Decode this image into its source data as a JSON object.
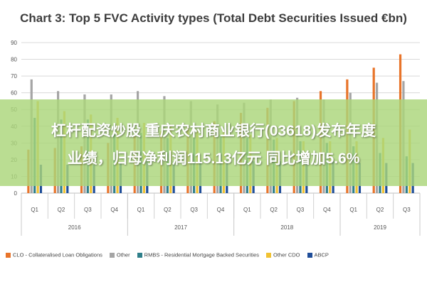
{
  "chart_data": {
    "type": "bar",
    "title": "Chart 3: Top 5 FVC Activity types (Total Debt Securities Issued €bn)",
    "xlabel": "",
    "ylabel": "",
    "ylim": [
      0,
      90
    ],
    "yticks": [
      "0",
      "10",
      "20",
      "30",
      "40",
      "50",
      "60",
      "70",
      "80",
      "90"
    ],
    "grid": true,
    "legend_position": "bottom",
    "categories": [
      "Q1",
      "Q2",
      "Q3",
      "Q4",
      "Q1",
      "Q2",
      "Q3",
      "Q4",
      "Q1",
      "Q2",
      "Q3",
      "Q4",
      "Q1",
      "Q2",
      "Q3"
    ],
    "groups": [
      {
        "label": "2016",
        "quarters": 4
      },
      {
        "label": "2017",
        "quarters": 4
      },
      {
        "label": "2018",
        "quarters": 4
      },
      {
        "label": "2019",
        "quarters": 3
      }
    ],
    "series": [
      {
        "name": "CLO - Collateralised Loan Obligations",
        "color": "#e8742a",
        "values": [
          26,
          27,
          28,
          30,
          34,
          37,
          40,
          43,
          48,
          51,
          55,
          61,
          68,
          75,
          83
        ]
      },
      {
        "name": "Other",
        "color": "#a5a5a5",
        "values": [
          68,
          61,
          59,
          59,
          61,
          58,
          55,
          53,
          54,
          56,
          57,
          56,
          60,
          66,
          67
        ]
      },
      {
        "name": "RMBS - Residential Mortgage Backed Securities",
        "color": "#2f7f8a",
        "values": [
          45,
          44,
          44,
          41,
          36,
          33,
          33,
          35,
          33,
          32,
          31,
          30,
          28,
          24,
          22
        ]
      },
      {
        "name": "Other CDO",
        "color": "#f1c232",
        "values": [
          55,
          49,
          47,
          45,
          42,
          40,
          37,
          37,
          35,
          33,
          31,
          31,
          31,
          33,
          38
        ]
      },
      {
        "name": "ABCP",
        "color": "#1f4e99",
        "values": [
          17,
          17,
          17,
          18,
          19,
          19,
          19,
          20,
          19,
          19,
          18,
          19,
          18,
          18,
          18
        ]
      }
    ]
  },
  "overlay": {
    "line1": "杠杆配资炒股 重庆农村商业银行(03618)发布年度",
    "line2": "业绩，归母净利润115.13亿元 同比增加5.6%"
  }
}
